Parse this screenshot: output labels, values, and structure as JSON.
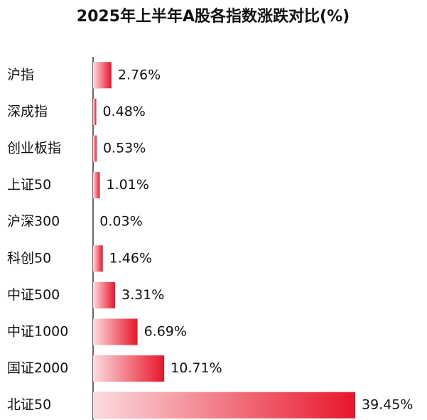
{
  "chart_data": {
    "type": "bar",
    "orientation": "horizontal",
    "title": "2025年上半年A股各指数涨跌对比(%)",
    "categories": [
      "沪指",
      "深成指",
      "创业板指",
      "上证50",
      "沪深300",
      "科创50",
      "中证500",
      "中证1000",
      "国证2000",
      "北证50"
    ],
    "values": [
      2.76,
      0.48,
      0.53,
      1.01,
      0.03,
      1.46,
      3.31,
      6.69,
      10.71,
      39.45
    ],
    "value_labels": [
      "2.76%",
      "0.48%",
      "0.53%",
      "1.01%",
      "0.03%",
      "1.46%",
      "3.31%",
      "6.69%",
      "10.71%",
      "39.45%"
    ],
    "color": "#e8162b"
  }
}
